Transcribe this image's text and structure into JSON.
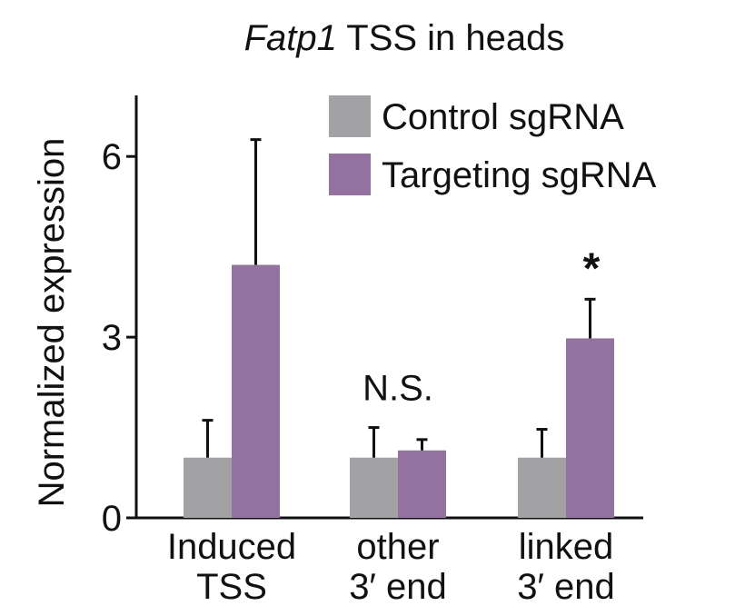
{
  "chart_data": {
    "type": "bar",
    "title": {
      "italic": "Fatp1",
      "rest": " TSS in heads"
    },
    "ylabel": "Normalized expression",
    "ylim": [
      0,
      7
    ],
    "yticks": [
      0,
      3,
      6
    ],
    "yticklabels": [
      "0",
      "3",
      "6"
    ],
    "categories": [
      [
        "Induced",
        "TSS"
      ],
      [
        "other",
        "3′ end"
      ],
      [
        "linked",
        "3′ end"
      ]
    ],
    "series": [
      {
        "name": "Control sgRNA",
        "color": "#a2a2a4",
        "values": [
          1.0,
          1.0,
          1.0
        ],
        "errors": [
          0.62,
          0.5,
          0.47
        ]
      },
      {
        "name": "Targeting sgRNA",
        "color": "#93729f",
        "values": [
          4.2,
          1.12,
          2.98
        ],
        "errors": [
          2.08,
          0.18,
          0.65
        ]
      }
    ],
    "annotations": [
      {
        "category": 1,
        "text": "N.S.",
        "above_value": 1.5
      },
      {
        "category": 2,
        "text": "*",
        "above_value": 3.63
      }
    ],
    "legend": "top-right",
    "grid": false
  }
}
